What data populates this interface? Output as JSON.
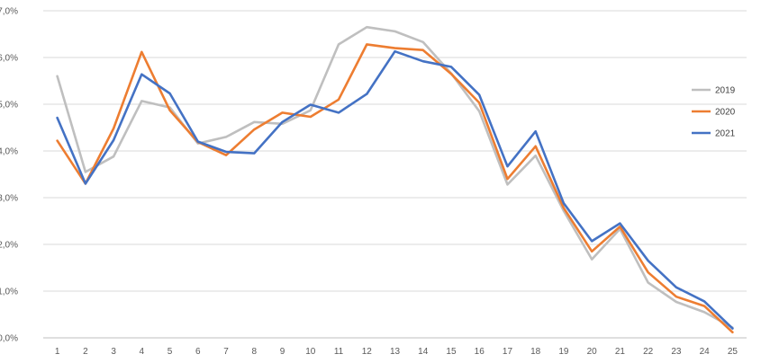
{
  "chart_data": {
    "type": "line",
    "title": "",
    "xlabel": "",
    "ylabel": "",
    "x": [
      1,
      2,
      3,
      4,
      5,
      6,
      7,
      8,
      9,
      10,
      11,
      12,
      13,
      14,
      15,
      16,
      17,
      18,
      19,
      20,
      21,
      22,
      23,
      24,
      25
    ],
    "x_tick_labels": [
      "1",
      "2",
      "3",
      "4",
      "5",
      "6",
      "7",
      "8",
      "9",
      "10",
      "11",
      "12",
      "13",
      "14",
      "15",
      "16",
      "17",
      "18",
      "19",
      "20",
      "21",
      "22",
      "23",
      "24",
      "25"
    ],
    "ylim": [
      0,
      7
    ],
    "y_ticks": [
      0,
      1,
      2,
      3,
      4,
      5,
      6,
      7
    ],
    "y_tick_labels": [
      "0,0%",
      "1,0%",
      "2,0%",
      "3,0%",
      "4,0%",
      "5,0%",
      "6,0%",
      "7,0%"
    ],
    "grid": true,
    "legend_position": "right",
    "series": [
      {
        "name": "2019",
        "color": "#bfbfbf",
        "values": [
          5.6,
          3.55,
          3.88,
          5.07,
          4.93,
          4.16,
          4.3,
          4.62,
          4.58,
          4.87,
          6.28,
          6.65,
          6.56,
          6.33,
          5.66,
          4.85,
          3.28,
          3.9,
          2.72,
          1.68,
          2.33,
          1.18,
          0.77,
          0.55,
          0.22
        ]
      },
      {
        "name": "2020",
        "color": "#ed7d31",
        "values": [
          4.22,
          3.3,
          4.48,
          6.12,
          4.87,
          4.19,
          3.91,
          4.46,
          4.82,
          4.73,
          5.1,
          6.28,
          6.2,
          6.16,
          5.65,
          5.03,
          3.4,
          4.1,
          2.78,
          1.85,
          2.38,
          1.4,
          0.88,
          0.68,
          0.12
        ]
      },
      {
        "name": "2021",
        "color": "#4472c4",
        "values": [
          4.71,
          3.3,
          4.23,
          5.64,
          5.23,
          4.2,
          3.98,
          3.95,
          4.62,
          4.99,
          4.82,
          5.22,
          6.13,
          5.92,
          5.8,
          5.2,
          3.67,
          4.42,
          2.88,
          2.07,
          2.45,
          1.65,
          1.08,
          0.78,
          0.2
        ]
      }
    ]
  }
}
